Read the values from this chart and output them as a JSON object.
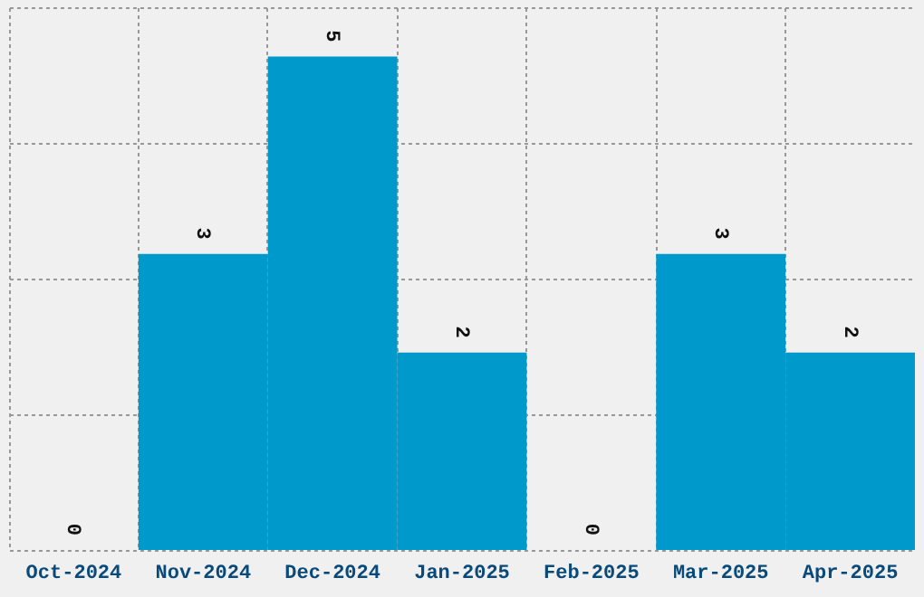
{
  "chart_data": {
    "type": "bar",
    "categories": [
      "Oct-2024",
      "Nov-2024",
      "Dec-2024",
      "Jan-2025",
      "Feb-2025",
      "Mar-2025",
      "Apr-2025"
    ],
    "values": [
      0,
      3,
      5,
      2,
      0,
      3,
      2
    ],
    "color": "#0099cc",
    "data_labels": true,
    "ylim": [
      0,
      5.5
    ],
    "yticks": [
      {
        "value": 0,
        "label": null
      },
      {
        "value": 1.375,
        "label": null
      },
      {
        "value": 2.75,
        "label": null
      },
      {
        "value": 4.125,
        "label": null
      },
      {
        "value": 5.5,
        "label": null
      }
    ],
    "grid": true,
    "tick_labels": "x"
  }
}
